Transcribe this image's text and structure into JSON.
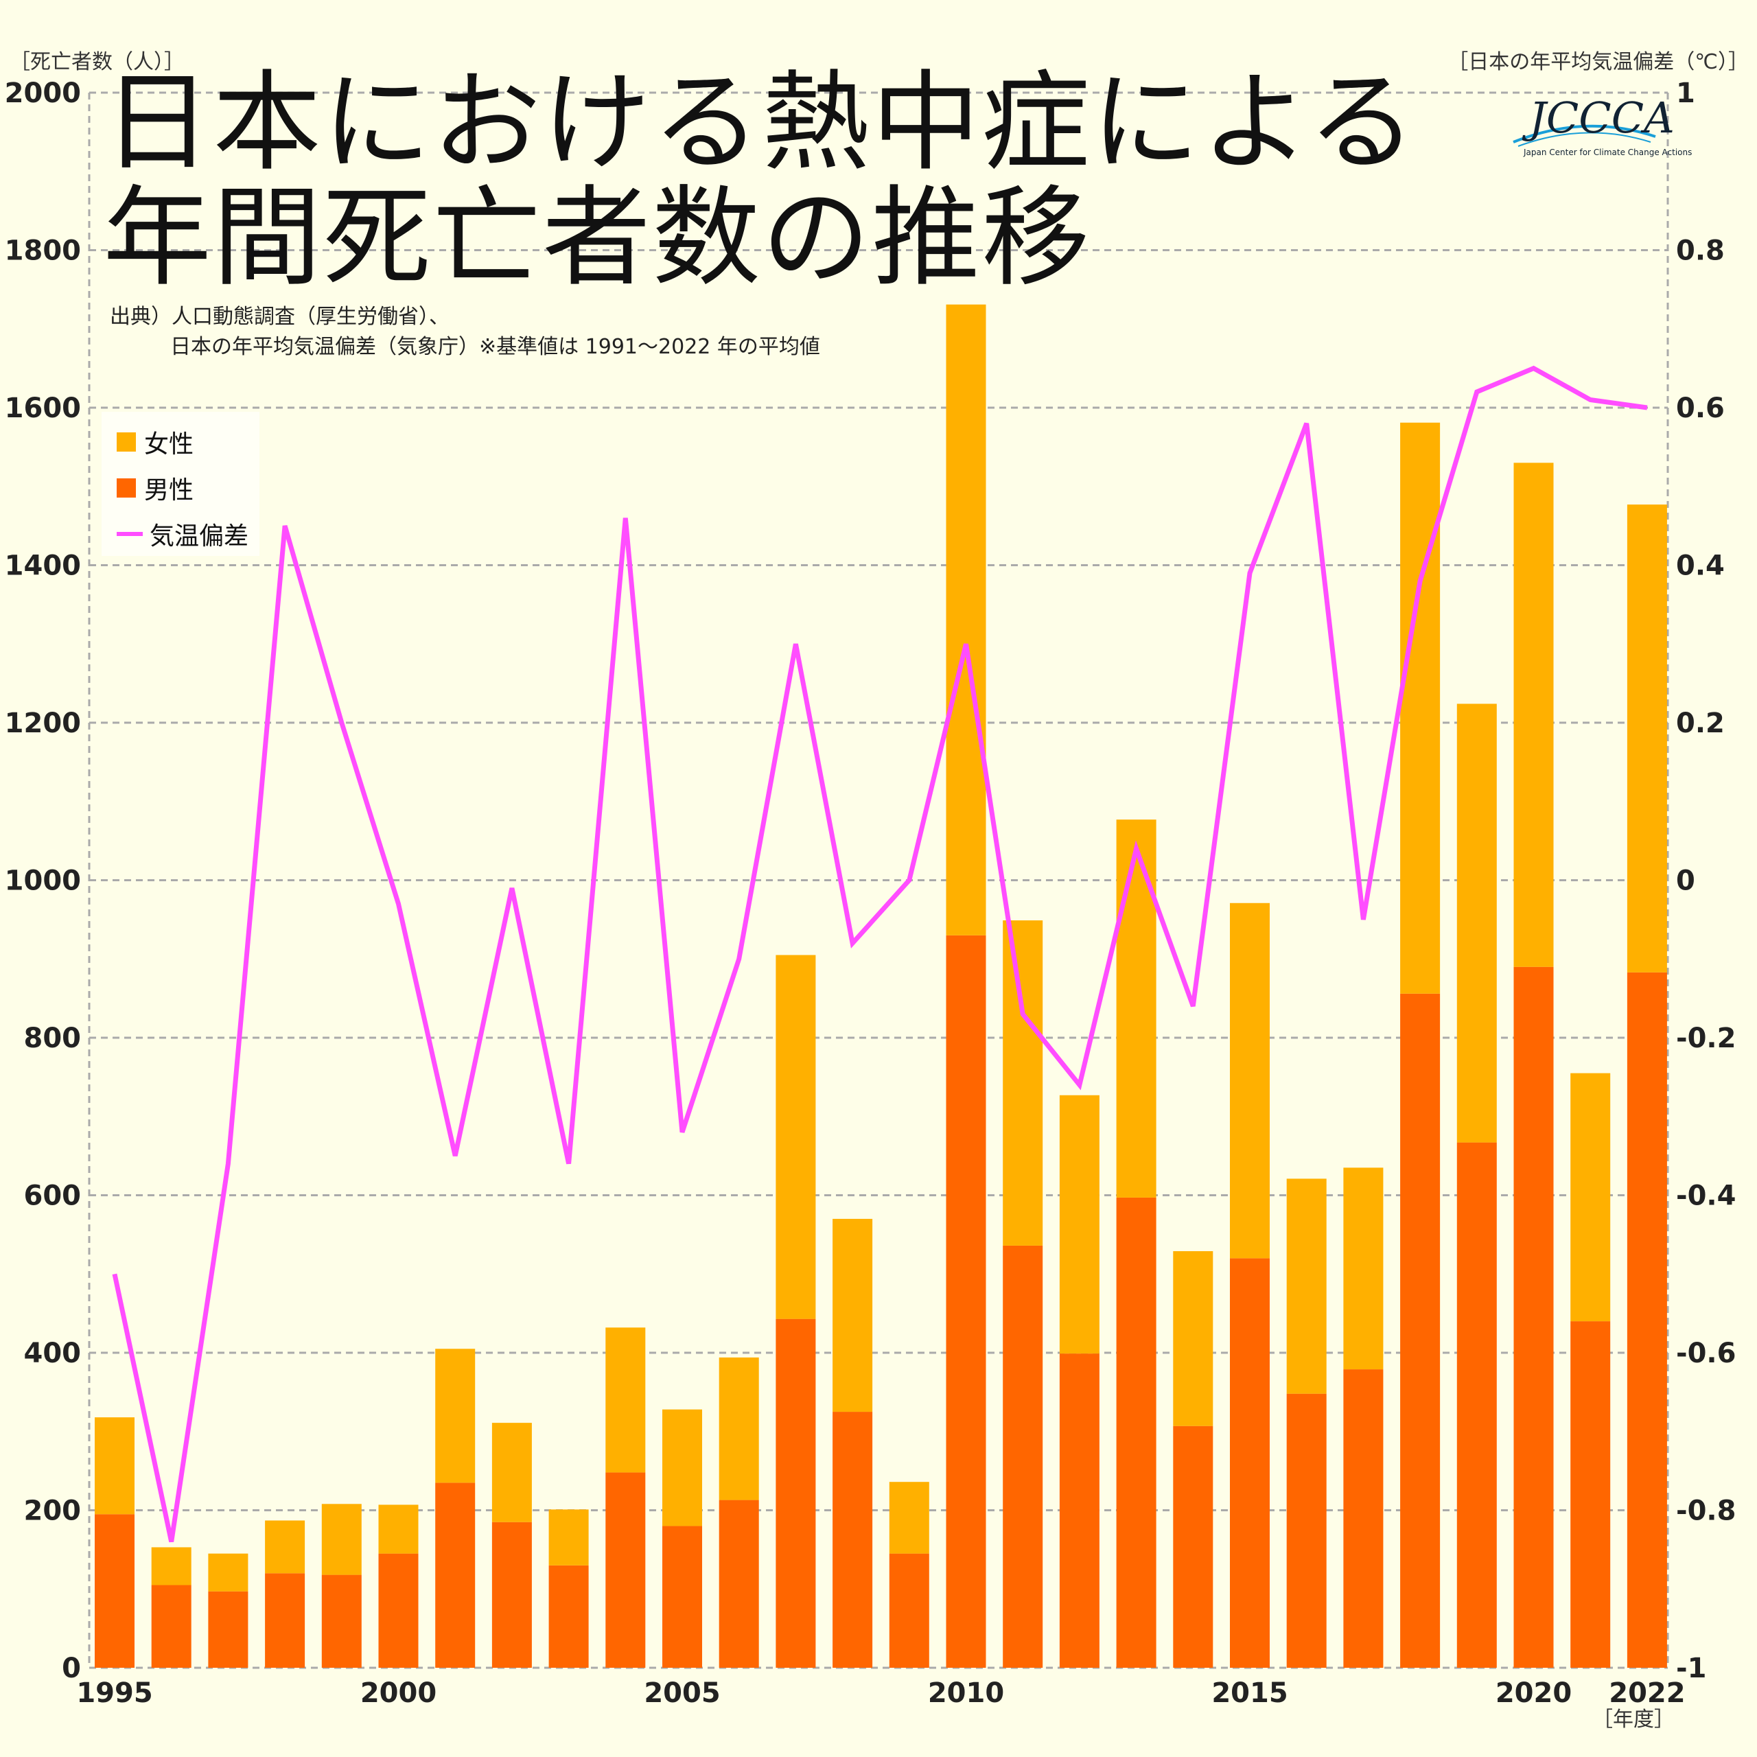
{
  "header": {
    "title_line1": "日本における熱中症による",
    "title_line2": "年間死亡者数の推移",
    "source_line1": "出典）人口動態調査（厚生労働省）、",
    "source_line2": "日本の年平均気温偏差（気象庁）※基準値は 1991～2022 年の平均値"
  },
  "logo": {
    "text": "JCCCA",
    "subtext": "Japan Center for Climate Change Actions"
  },
  "legend": {
    "female": "女性",
    "male": "男性",
    "temp": "気温偏差"
  },
  "colors": {
    "female": "#ffb000",
    "male": "#ff6600",
    "temp": "#ff4dff",
    "background": "#fefee8"
  },
  "chart_data": {
    "type": "bar",
    "stacked": true,
    "left_axis_label": "［死亡者数（人）］",
    "right_axis_label": "［日本の年平均気温偏差（℃）］",
    "x_axis_label": "［年度］",
    "ylim": [
      0,
      2000
    ],
    "y_ticks": [
      0,
      200,
      400,
      600,
      800,
      1000,
      1200,
      1400,
      1600,
      1800,
      2000
    ],
    "y2lim": [
      -1,
      1
    ],
    "y2_ticks": [
      "-1",
      "-0.8",
      "-0.6",
      "-0.4",
      "-0.2",
      "0",
      "0.2",
      "0.4",
      "0.6",
      "0.8",
      "1"
    ],
    "x_tick_labels": [
      "1995",
      "2000",
      "2005",
      "2010",
      "2015",
      "2020",
      "2022"
    ],
    "x_tick_years": [
      1995,
      2000,
      2005,
      2010,
      2015,
      2020,
      2022
    ],
    "grid": true,
    "legend_position": "top-left",
    "categories": [
      1995,
      1996,
      1997,
      1998,
      1999,
      2000,
      2001,
      2002,
      2003,
      2004,
      2005,
      2006,
      2007,
      2008,
      2009,
      2010,
      2011,
      2012,
      2013,
      2014,
      2015,
      2016,
      2017,
      2018,
      2019,
      2020,
      2021,
      2022
    ],
    "series": [
      {
        "name": "男性",
        "values": [
          195,
          105,
          97,
          120,
          118,
          145,
          235,
          185,
          130,
          248,
          180,
          213,
          443,
          325,
          145,
          930,
          536,
          399,
          597,
          307,
          520,
          348,
          379,
          856,
          667,
          890,
          440,
          883
        ]
      },
      {
        "name": "女性",
        "values": [
          123,
          48,
          48,
          67,
          90,
          62,
          170,
          126,
          71,
          184,
          148,
          181,
          462,
          245,
          91,
          801,
          413,
          328,
          480,
          222,
          451,
          273,
          256,
          725,
          557,
          640,
          315,
          594
        ]
      },
      {
        "name": "気温偏差",
        "axis": "right",
        "values": [
          -0.5,
          -0.84,
          -0.36,
          0.45,
          0.2,
          -0.03,
          -0.35,
          -0.01,
          -0.36,
          0.46,
          -0.32,
          -0.1,
          0.3,
          -0.08,
          0.0,
          0.3,
          -0.17,
          -0.26,
          0.04,
          -0.16,
          0.39,
          0.58,
          -0.05,
          0.38,
          0.62,
          0.65,
          0.61,
          0.6
        ]
      }
    ]
  }
}
